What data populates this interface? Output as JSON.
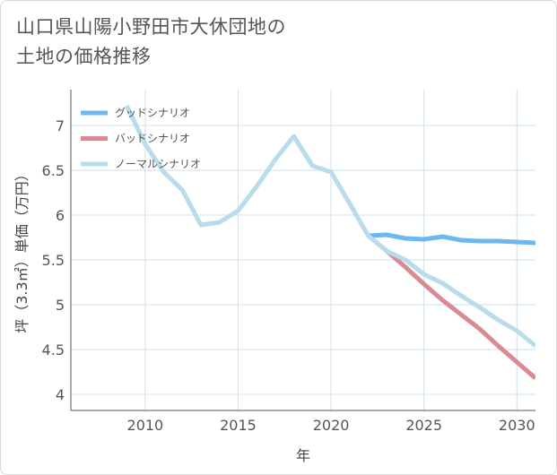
{
  "title_line1": "山口県山陽小野田市大休団地の",
  "title_line2": "土地の価格推移",
  "chart_data": {
    "type": "line",
    "xlabel": "年",
    "ylabel": "坪（3.3㎡）単価（万円）",
    "xlim": [
      2006,
      2031
    ],
    "ylim": [
      3.82,
      7.4
    ],
    "x_ticks": [
      2010,
      2015,
      2020,
      2025,
      2030
    ],
    "y_ticks": [
      4,
      4.5,
      5,
      5.5,
      6,
      6.5,
      7
    ],
    "grid": true,
    "legend_position": "top-left",
    "series": [
      {
        "name": "グッドシナリオ",
        "color": "#6cb8ee",
        "x": [
          2022,
          2023,
          2024,
          2025,
          2026,
          2027,
          2028,
          2029,
          2030,
          2031
        ],
        "values": [
          5.77,
          5.78,
          5.74,
          5.73,
          5.76,
          5.72,
          5.71,
          5.71,
          5.7,
          5.69
        ]
      },
      {
        "name": "バッドシナリオ",
        "color": "#d98a93",
        "x": [
          2022,
          2023,
          2024,
          2025,
          2026,
          2027,
          2028,
          2029,
          2030,
          2031
        ],
        "values": [
          5.77,
          5.6,
          5.42,
          5.23,
          5.05,
          4.89,
          4.73,
          4.54,
          4.36,
          4.18
        ]
      },
      {
        "name": "ノーマルシナリオ",
        "color": "#b8dcea",
        "x": [
          2009,
          2010,
          2011,
          2012,
          2013,
          2014,
          2015,
          2016,
          2017,
          2018,
          2019,
          2020,
          2021,
          2022,
          2023,
          2024,
          2025,
          2026,
          2027,
          2028,
          2029,
          2030,
          2031
        ],
        "values": [
          7.22,
          6.79,
          6.48,
          6.28,
          5.89,
          5.92,
          6.05,
          6.32,
          6.62,
          6.88,
          6.55,
          6.48,
          6.13,
          5.77,
          5.6,
          5.5,
          5.34,
          5.24,
          5.1,
          4.97,
          4.83,
          4.71,
          4.54
        ]
      }
    ]
  }
}
